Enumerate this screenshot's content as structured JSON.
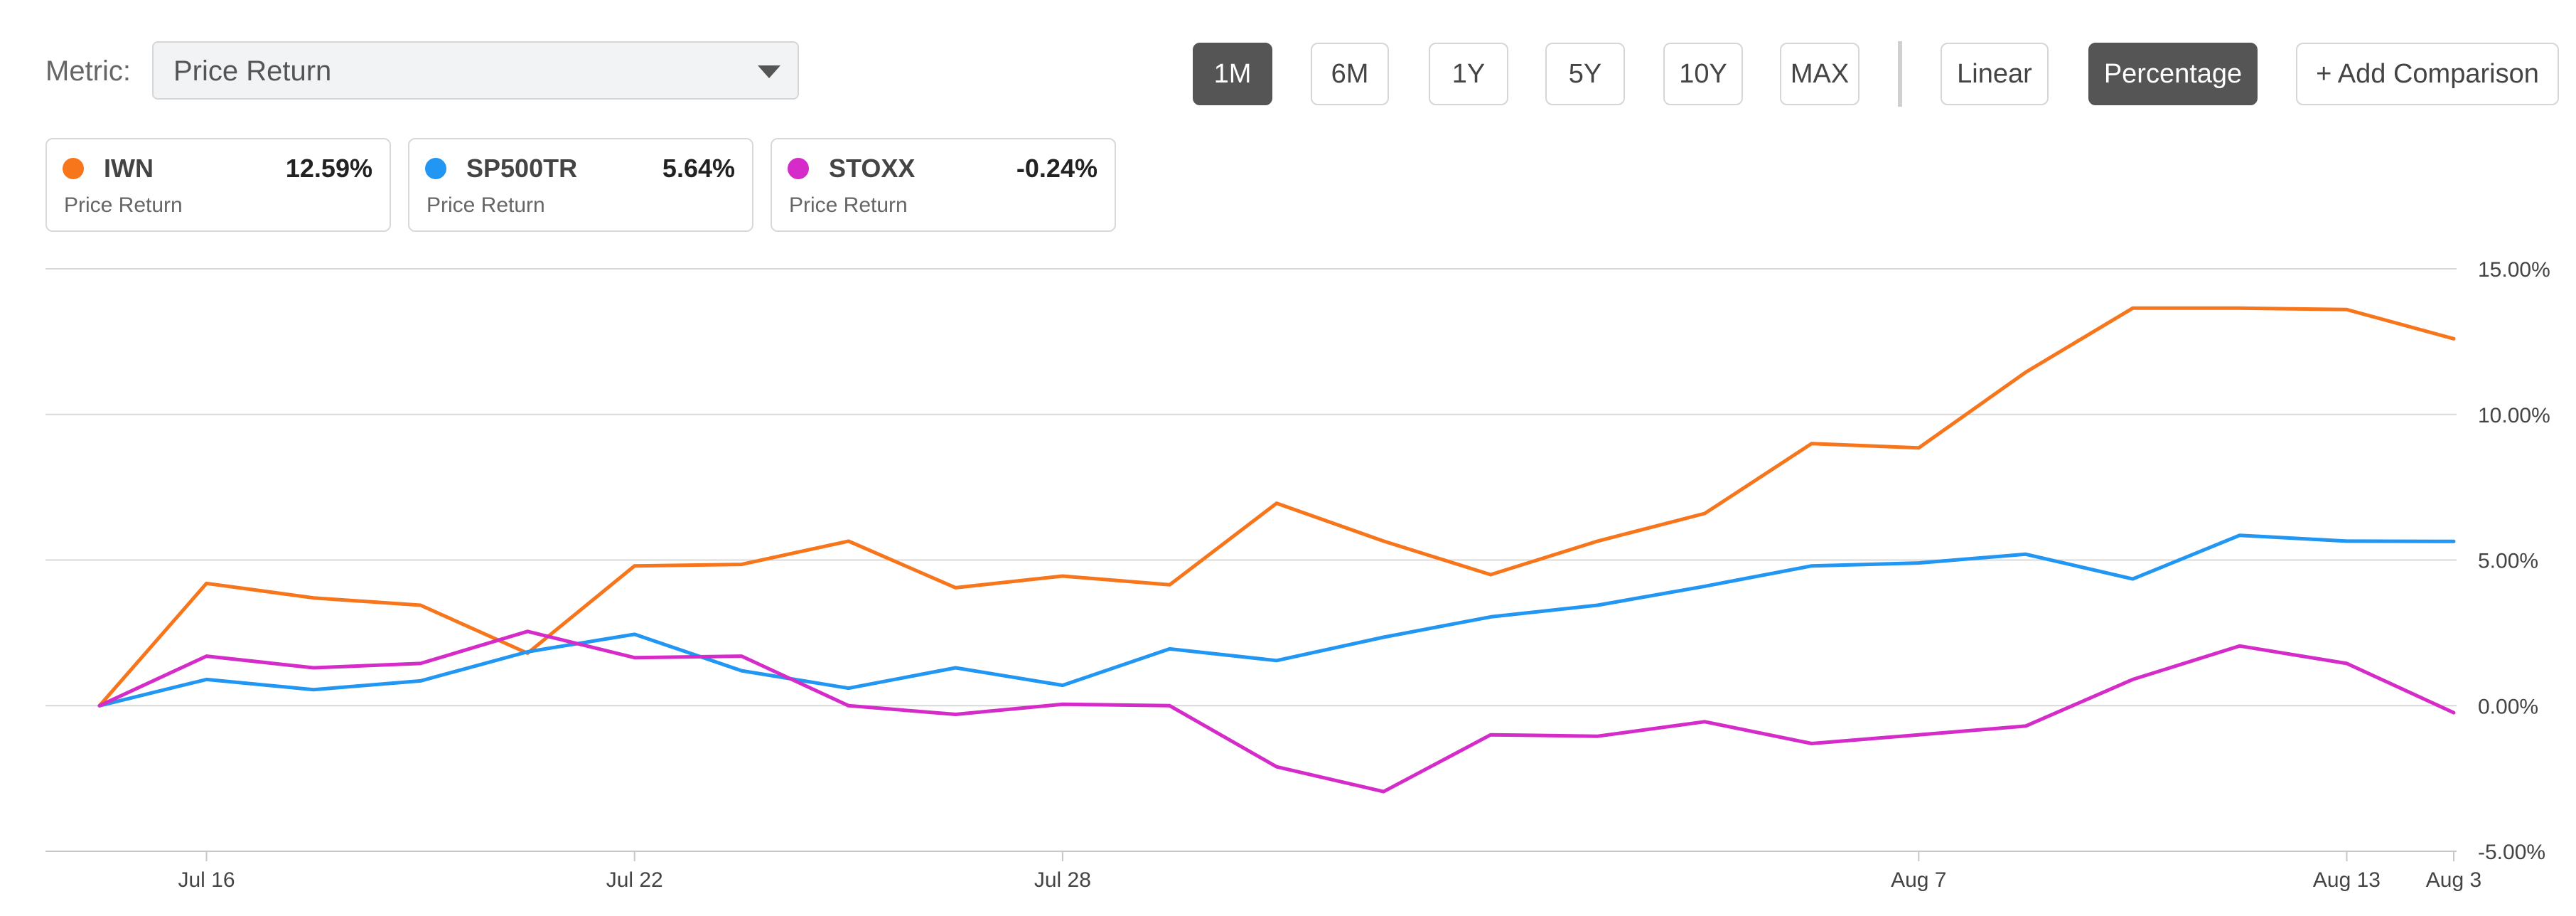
{
  "toolbar": {
    "metric_label": "Metric:",
    "metric_value": "Price Return",
    "ranges": [
      "1M",
      "6M",
      "1Y",
      "5Y",
      "10Y",
      "MAX"
    ],
    "active_range": "1M",
    "scales": [
      "Linear",
      "Percentage"
    ],
    "active_scale": "Percentage",
    "add_comparison": "+ Add Comparison"
  },
  "legend": [
    {
      "name": "IWN",
      "value": "12.59%",
      "metric": "Price Return",
      "color": "#f7761b"
    },
    {
      "name": "SP500TR",
      "value": "5.64%",
      "metric": "Price Return",
      "color": "#2196f3"
    },
    {
      "name": "STOXX",
      "value": "-0.24%",
      "metric": "Price Return",
      "color": "#d42bc9"
    }
  ],
  "chart_data": {
    "type": "line",
    "y_ticks": [
      "15.00%",
      "10.00%",
      "5.00%",
      "0.00%",
      "-5.00%"
    ],
    "ylim": [
      -5,
      15
    ],
    "x_ticks": [
      "Jul 16",
      "Jul 22",
      "Jul 28",
      "Aug 3",
      "Aug 7",
      "Aug 13"
    ],
    "grid": true,
    "series": [
      {
        "name": "IWN",
        "color": "#f7761b",
        "x": [
          "Jul 15",
          "Jul 16",
          "Jul 17",
          "Jul 18",
          "Jul 21",
          "Jul 22",
          "Jul 23",
          "Jul 24",
          "Jul 25",
          "Jul 28",
          "Jul 29",
          "Jul 30",
          "Jul 31",
          "Aug 1",
          "Aug 4",
          "Aug 5",
          "Aug 6",
          "Aug 7",
          "Aug 8",
          "Aug 11",
          "Aug 12",
          "Aug 13",
          "Aug 14"
        ],
        "values": [
          0.0,
          4.2,
          3.7,
          3.45,
          1.8,
          4.8,
          4.85,
          5.65,
          4.05,
          4.45,
          4.15,
          6.95,
          5.65,
          4.5,
          5.65,
          6.6,
          9.0,
          8.85,
          11.45,
          13.65,
          13.65,
          13.6,
          12.6
        ]
      },
      {
        "name": "SP500TR",
        "color": "#2196f3",
        "x": [
          "Jul 15",
          "Jul 16",
          "Jul 17",
          "Jul 18",
          "Jul 21",
          "Jul 22",
          "Jul 23",
          "Jul 24",
          "Jul 25",
          "Jul 28",
          "Jul 29",
          "Jul 30",
          "Jul 31",
          "Aug 1",
          "Aug 4",
          "Aug 5",
          "Aug 6",
          "Aug 7",
          "Aug 8",
          "Aug 11",
          "Aug 12",
          "Aug 13",
          "Aug 14"
        ],
        "values": [
          0.0,
          0.9,
          0.55,
          0.85,
          1.85,
          2.45,
          1.2,
          0.6,
          1.3,
          0.7,
          1.95,
          1.55,
          2.35,
          3.05,
          3.45,
          4.1,
          4.8,
          4.9,
          5.2,
          4.35,
          5.85,
          5.65,
          5.64
        ]
      },
      {
        "name": "STOXX",
        "color": "#d42bc9",
        "x": [
          "Jul 15",
          "Jul 16",
          "Jul 17",
          "Jul 18",
          "Jul 21",
          "Jul 22",
          "Jul 23",
          "Jul 24",
          "Jul 25",
          "Jul 28",
          "Jul 29",
          "Jul 30",
          "Jul 31",
          "Aug 1",
          "Aug 4",
          "Aug 5",
          "Aug 6",
          "Aug 7",
          "Aug 8",
          "Aug 11",
          "Aug 12",
          "Aug 13",
          "Aug 14"
        ],
        "values": [
          0.0,
          1.7,
          1.3,
          1.45,
          2.55,
          1.65,
          1.7,
          0.0,
          -0.3,
          0.05,
          0.0,
          -2.1,
          -2.95,
          -1.0,
          -1.05,
          -0.55,
          -1.3,
          -1.0,
          -0.7,
          0.9,
          2.05,
          1.45,
          -0.24
        ]
      }
    ]
  }
}
